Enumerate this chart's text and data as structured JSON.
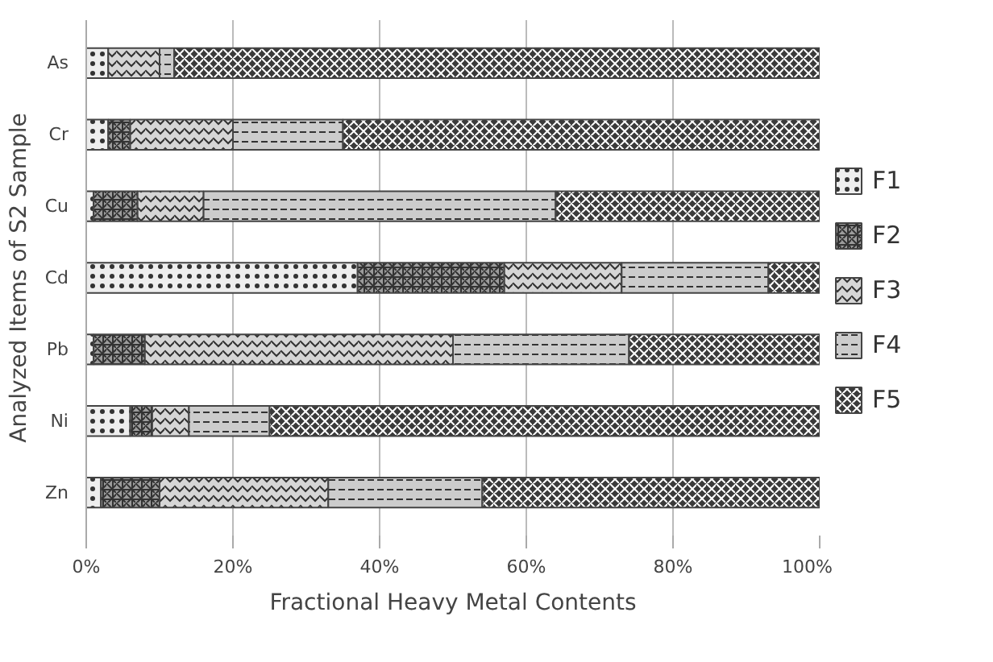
{
  "chart_data": {
    "type": "bar",
    "orientation": "horizontal",
    "stacked": true,
    "xlabel": "Fractional Heavy Metal Contents",
    "ylabel": "Analyzed Items of S2 Sample",
    "categories": [
      "As",
      "Cr",
      "Cu",
      "Cd",
      "Pb",
      "Ni",
      "Zn"
    ],
    "series": [
      {
        "name": "F1",
        "color": "#eeeeee",
        "values": [
          3,
          3,
          1,
          37,
          1,
          6,
          2
        ]
      },
      {
        "name": "F2",
        "color": "#9c9c9c",
        "values": [
          0,
          3,
          6,
          20,
          7,
          3,
          8
        ]
      },
      {
        "name": "F3",
        "color": "#d6d6d6",
        "values": [
          7,
          14,
          9,
          16,
          42,
          5,
          23
        ]
      },
      {
        "name": "F4",
        "color": "#cccccc",
        "values": [
          2,
          15,
          48,
          20,
          24,
          11,
          21
        ]
      },
      {
        "name": "F5",
        "color": "#3a3a3a",
        "values": [
          88,
          65,
          36,
          7,
          26,
          75,
          46
        ]
      }
    ],
    "xlim": [
      0,
      100
    ],
    "xticks": [
      {
        "value": 0,
        "label": "0%"
      },
      {
        "value": 20,
        "label": "20%"
      },
      {
        "value": 40,
        "label": "40%"
      },
      {
        "value": 60,
        "label": "60%"
      },
      {
        "value": 80,
        "label": "80%"
      },
      {
        "value": 100,
        "label": "100%"
      }
    ],
    "grid": "x",
    "legend": "right"
  }
}
